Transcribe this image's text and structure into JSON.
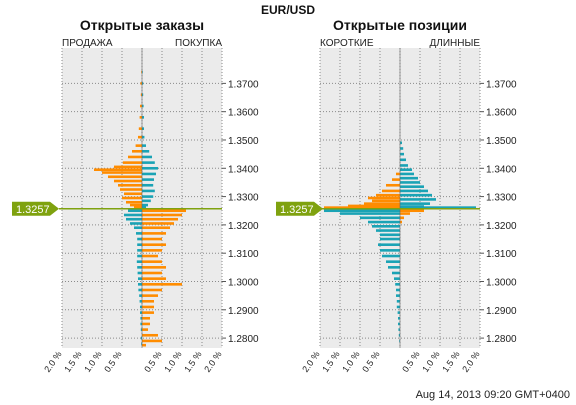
{
  "header": {
    "symbol": "EUR/USD"
  },
  "footer": {
    "timestamp": "Aug 14, 2013 09:20 GMT+0400"
  },
  "colors": {
    "left": "#ff8c00",
    "right": "#1aa3b5",
    "price": "#7fa20f",
    "panel_bg": "#ebebeb"
  },
  "chart_data": [
    {
      "type": "bar",
      "orientation": "horizontal-butterfly",
      "title": "Открытые заказы",
      "left_label": "ПРОДАЖА",
      "right_label": "ПОКУПКА",
      "current_price": 1.3257,
      "current_price_label": "1.3257",
      "ylim": [
        1.2765,
        1.3825
      ],
      "yticks": [
        "1.2800",
        "1.2900",
        "1.3000",
        "1.3100",
        "1.3200",
        "1.3300",
        "1.3400",
        "1.3500",
        "1.3600",
        "1.3700"
      ],
      "xticks_left": [
        "2.0 %",
        "1.5 %",
        "1.0 %",
        "0.5 %"
      ],
      "xticks_right": [
        "0.5 %",
        "1.0 %",
        "1.5 %",
        "2.0 %"
      ],
      "xlim": [
        -2.0,
        2.0
      ],
      "series": [
        {
          "key": "sell",
          "color": "#ff8c00",
          "points": [
            [
              1.374,
              0.02
            ],
            [
              1.37,
              0.04
            ],
            [
              1.366,
              0.03
            ],
            [
              1.362,
              0.05
            ],
            [
              1.358,
              0.06
            ],
            [
              1.354,
              0.08
            ],
            [
              1.351,
              0.1
            ],
            [
              1.348,
              0.16
            ],
            [
              1.346,
              0.25
            ],
            [
              1.344,
              0.35
            ],
            [
              1.342,
              0.48
            ],
            [
              1.3405,
              0.7
            ],
            [
              1.3395,
              1.2
            ],
            [
              1.3385,
              1.0
            ],
            [
              1.337,
              0.85
            ],
            [
              1.3355,
              0.7
            ],
            [
              1.334,
              0.6
            ],
            [
              1.3325,
              0.55
            ],
            [
              1.331,
              0.45
            ],
            [
              1.3295,
              0.5
            ],
            [
              1.328,
              0.4
            ],
            [
              1.327,
              0.3
            ],
            [
              1.3263,
              0.2
            ]
          ]
        },
        {
          "key": "buy",
          "color": "#1aa3b5",
          "points": [
            [
              1.374,
              0.02
            ],
            [
              1.37,
              0.03
            ],
            [
              1.366,
              0.03
            ],
            [
              1.362,
              0.04
            ],
            [
              1.358,
              0.05
            ],
            [
              1.354,
              0.05
            ],
            [
              1.351,
              0.06
            ],
            [
              1.348,
              0.1
            ],
            [
              1.346,
              0.18
            ],
            [
              1.344,
              0.25
            ],
            [
              1.342,
              0.32
            ],
            [
              1.34,
              0.4
            ],
            [
              1.338,
              0.35
            ],
            [
              1.336,
              0.3
            ],
            [
              1.334,
              0.28
            ],
            [
              1.332,
              0.32
            ],
            [
              1.33,
              0.28
            ],
            [
              1.3285,
              0.22
            ],
            [
              1.327,
              0.15
            ],
            [
              1.3263,
              0.1
            ]
          ]
        },
        {
          "key": "sell-below",
          "color": "#1aa3b5",
          "points": [
            [
              1.325,
              0.35
            ],
            [
              1.3235,
              0.45
            ],
            [
              1.322,
              0.4
            ],
            [
              1.3205,
              0.3
            ],
            [
              1.319,
              0.2
            ],
            [
              1.317,
              0.15
            ],
            [
              1.315,
              0.12
            ],
            [
              1.313,
              0.12
            ],
            [
              1.311,
              0.12
            ],
            [
              1.309,
              0.12
            ],
            [
              1.307,
              0.13
            ],
            [
              1.305,
              0.12
            ],
            [
              1.303,
              0.11
            ],
            [
              1.301,
              0.1
            ],
            [
              1.299,
              0.1
            ],
            [
              1.297,
              0.09
            ],
            [
              1.295,
              0.07
            ],
            [
              1.293,
              0.06
            ],
            [
              1.291,
              0.05
            ],
            [
              1.289,
              0.05
            ],
            [
              1.287,
              0.04
            ],
            [
              1.285,
              0.04
            ],
            [
              1.283,
              0.03
            ],
            [
              1.28,
              0.03
            ],
            [
              1.278,
              0.02
            ]
          ]
        },
        {
          "key": "buy-below",
          "color": "#ff8c00",
          "points": [
            [
              1.325,
              1.1
            ],
            [
              1.3235,
              1.0
            ],
            [
              1.322,
              0.9
            ],
            [
              1.3205,
              0.8
            ],
            [
              1.319,
              0.7
            ],
            [
              1.317,
              0.6
            ],
            [
              1.315,
              0.5
            ],
            [
              1.313,
              0.6
            ],
            [
              1.311,
              0.5
            ],
            [
              1.309,
              0.4
            ],
            [
              1.307,
              0.5
            ],
            [
              1.305,
              0.6
            ],
            [
              1.303,
              0.5
            ],
            [
              1.301,
              0.6
            ],
            [
              1.299,
              1.0
            ],
            [
              1.297,
              0.5
            ],
            [
              1.295,
              0.4
            ],
            [
              1.293,
              0.3
            ],
            [
              1.291,
              0.3
            ],
            [
              1.289,
              0.3
            ],
            [
              1.287,
              0.2
            ],
            [
              1.285,
              0.2
            ],
            [
              1.283,
              0.15
            ],
            [
              1.281,
              0.4
            ],
            [
              1.279,
              0.5
            ],
            [
              1.2775,
              0.1
            ]
          ]
        }
      ]
    },
    {
      "type": "bar",
      "orientation": "horizontal-butterfly",
      "title": "Открытые позиции",
      "left_label": "КОРОТКИЕ",
      "right_label": "ДЛИННЫЕ",
      "current_price": 1.3257,
      "current_price_label": "1.3257",
      "ylim": [
        1.2765,
        1.3825
      ],
      "yticks": [
        "1.2800",
        "1.2900",
        "1.3000",
        "1.3100",
        "1.3200",
        "1.3300",
        "1.3400",
        "1.3500",
        "1.3600",
        "1.3700"
      ],
      "xticks_left": [
        "2.0 %",
        "1.5 %",
        "1.0 %",
        "0.5 %"
      ],
      "xticks_right": [
        "0.5 %",
        "1.0 %",
        "1.5 %",
        "2.0 %"
      ],
      "xlim": [
        -2.0,
        2.0
      ],
      "series": [
        {
          "key": "short-above",
          "color": "#ff8c00",
          "points": [
            [
              1.338,
              0.1
            ],
            [
              1.336,
              0.2
            ],
            [
              1.334,
              0.35
            ],
            [
              1.332,
              0.45
            ],
            [
              1.3305,
              0.6
            ],
            [
              1.3295,
              0.8
            ],
            [
              1.3285,
              0.7
            ],
            [
              1.3275,
              0.9
            ],
            [
              1.3267,
              1.3
            ],
            [
              1.3261,
              1.9
            ]
          ]
        },
        {
          "key": "long-above",
          "color": "#1aa3b5",
          "points": [
            [
              1.349,
              0.05
            ],
            [
              1.347,
              0.08
            ],
            [
              1.345,
              0.1
            ],
            [
              1.343,
              0.15
            ],
            [
              1.341,
              0.2
            ],
            [
              1.3395,
              0.3
            ],
            [
              1.338,
              0.35
            ],
            [
              1.3365,
              0.45
            ],
            [
              1.335,
              0.5
            ],
            [
              1.3335,
              0.6
            ],
            [
              1.332,
              0.7
            ],
            [
              1.3305,
              0.8
            ],
            [
              1.329,
              0.9
            ],
            [
              1.3275,
              0.75
            ],
            [
              1.3265,
              0.6
            ],
            [
              1.3261,
              1.9
            ]
          ]
        },
        {
          "key": "short-below",
          "color": "#1aa3b5",
          "points": [
            [
              1.325,
              1.9
            ],
            [
              1.324,
              1.5
            ],
            [
              1.3225,
              1.0
            ],
            [
              1.321,
              0.8
            ],
            [
              1.3195,
              0.7
            ],
            [
              1.318,
              0.6
            ],
            [
              1.3165,
              0.5
            ],
            [
              1.315,
              0.5
            ],
            [
              1.313,
              0.55
            ],
            [
              1.311,
              0.5
            ],
            [
              1.309,
              0.45
            ],
            [
              1.307,
              0.35
            ],
            [
              1.305,
              0.3
            ],
            [
              1.303,
              0.2
            ],
            [
              1.301,
              0.15
            ],
            [
              1.299,
              0.12
            ],
            [
              1.297,
              0.1
            ],
            [
              1.295,
              0.1
            ],
            [
              1.293,
              0.08
            ],
            [
              1.291,
              0.08
            ],
            [
              1.289,
              0.06
            ],
            [
              1.287,
              0.05
            ],
            [
              1.285,
              0.05
            ],
            [
              1.283,
              0.04
            ],
            [
              1.281,
              0.03
            ],
            [
              1.279,
              0.02
            ]
          ]
        },
        {
          "key": "long-below",
          "color": "#ff8c00",
          "points": [
            [
              1.325,
              0.6
            ],
            [
              1.324,
              0.25
            ],
            [
              1.3225,
              0.1
            ],
            [
              1.321,
              0.05
            ]
          ]
        }
      ]
    }
  ]
}
